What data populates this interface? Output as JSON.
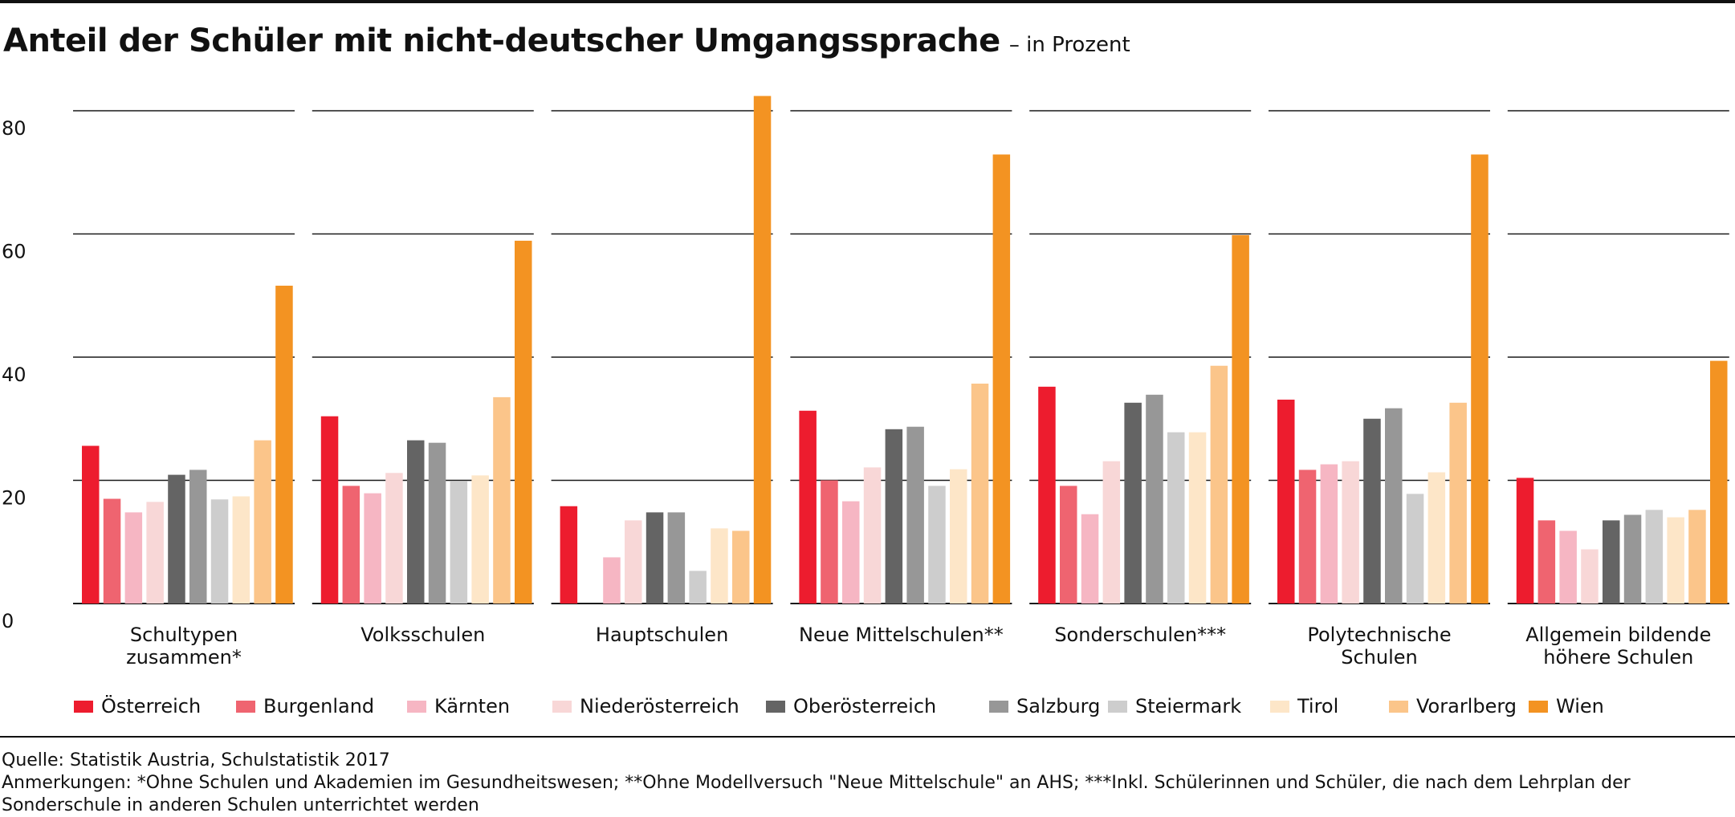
{
  "header": {
    "title": "Anteil der Schüler mit nicht-deutscher Umgangssprache",
    "subtitle": "– in Prozent"
  },
  "chart_data": {
    "type": "bar",
    "title": "Anteil der Schüler mit nicht-deutscher Umgangssprache",
    "subtitle": "– in Prozent",
    "ylim": [
      0,
      80
    ],
    "yticks": [
      "0",
      "20",
      "40",
      "60",
      "80"
    ],
    "grid": true,
    "legend_position": "bottom",
    "categories": [
      [
        "Schultypen",
        "zusammen*"
      ],
      [
        "Volksschulen"
      ],
      [
        "Hauptschulen"
      ],
      [
        "Neue Mittelschulen**"
      ],
      [
        "Sonderschulen***"
      ],
      [
        "Polytechnische",
        "Schulen"
      ],
      [
        "Allgemein bildende",
        "höhere Schulen"
      ]
    ],
    "series": [
      {
        "name": "Österreich",
        "color": "#ed1c2e",
        "values": [
          25.6,
          30.4,
          15.8,
          31.3,
          35.2,
          33.1,
          20.4
        ]
      },
      {
        "name": "Burgenland",
        "color": "#ef6470",
        "values": [
          17.0,
          19.1,
          null,
          20.0,
          19.1,
          21.7,
          13.5
        ]
      },
      {
        "name": "Kärnten",
        "color": "#f6b6c3",
        "values": [
          14.8,
          17.9,
          7.5,
          16.6,
          14.5,
          22.6,
          11.8
        ]
      },
      {
        "name": "Niederösterreich",
        "color": "#f8d7d7",
        "values": [
          16.5,
          21.2,
          13.5,
          22.1,
          23.1,
          23.1,
          8.8
        ]
      },
      {
        "name": "Oberösterreich",
        "color": "#646464",
        "values": [
          20.9,
          26.5,
          14.8,
          28.3,
          32.6,
          30.0,
          13.5
        ]
      },
      {
        "name": "Salzburg",
        "color": "#979797",
        "values": [
          21.7,
          26.1,
          14.8,
          28.7,
          33.9,
          31.7,
          14.4
        ]
      },
      {
        "name": "Steiermark",
        "color": "#cdcdcd",
        "values": [
          16.9,
          19.9,
          5.3,
          19.1,
          27.8,
          17.8,
          15.2
        ]
      },
      {
        "name": "Tirol",
        "color": "#fde6c8",
        "values": [
          17.4,
          20.8,
          12.2,
          21.8,
          27.8,
          21.3,
          14.0
        ]
      },
      {
        "name": "Vorarlberg",
        "color": "#fbc58a",
        "values": [
          26.5,
          33.5,
          11.8,
          35.7,
          38.6,
          32.6,
          15.2
        ]
      },
      {
        "name": "Wien",
        "color": "#f39322",
        "values": [
          51.6,
          58.9,
          82.4,
          72.9,
          59.8,
          72.9,
          39.4
        ]
      }
    ]
  },
  "footer": {
    "source": "Quelle: Statistik Austria, Schulstatistik 2017",
    "notes_line1": "Anmerkungen: *Ohne Schulen und Akademien im Gesundheitswesen; **Ohne Modellversuch \"Neue Mittelschule\" an AHS; ***Inkl. Schülerinnen und Schüler, die nach dem Lehrplan der",
    "notes_line2": "Sonderschule in anderen Schulen unterrichtet werden"
  }
}
